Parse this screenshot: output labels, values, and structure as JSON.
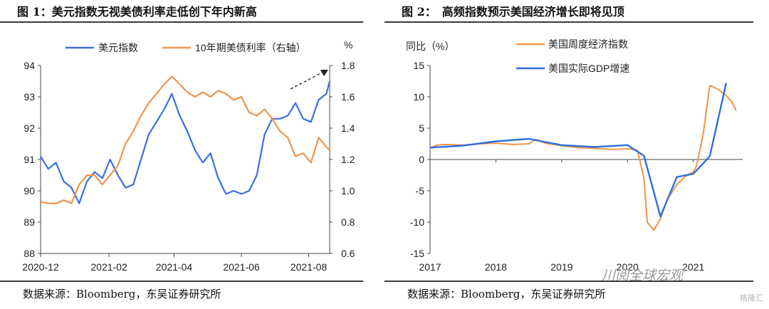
{
  "figure1": {
    "title": "图 1：美元指数无视美债利率走低创下年内新高",
    "source": "数据来源：Bloomberg，东吴证券研究所",
    "unit_right": "%",
    "chart_data": {
      "type": "line",
      "x_ticks": [
        "2020-12",
        "2021-02",
        "2021-04",
        "2021-06",
        "2021-08"
      ],
      "y_left_ticks": [
        88,
        89,
        90,
        91,
        92,
        93,
        94
      ],
      "y_right_ticks": [
        "0.6",
        "0.8",
        "1.0",
        "1.2",
        "1.4",
        "1.6",
        "1.8"
      ],
      "y_left_lim": [
        88,
        94
      ],
      "y_right_lim": [
        0.6,
        1.8
      ],
      "x_range": [
        "2020-12",
        "2021-08-20"
      ],
      "legend_position": "top",
      "annotation": "dashed arrow pointing to latest dollar index high",
      "series": [
        {
          "name": "美元指数",
          "axis": "left",
          "color": "#3b6fe0",
          "x": [
            "2020-12-01",
            "2020-12-08",
            "2020-12-15",
            "2020-12-22",
            "2020-12-29",
            "2021-01-05",
            "2021-01-12",
            "2021-01-19",
            "2021-01-26",
            "2021-02-02",
            "2021-02-09",
            "2021-02-16",
            "2021-02-23",
            "2021-03-02",
            "2021-03-09",
            "2021-03-16",
            "2021-03-23",
            "2021-03-30",
            "2021-04-06",
            "2021-04-13",
            "2021-04-20",
            "2021-04-27",
            "2021-05-04",
            "2021-05-11",
            "2021-05-18",
            "2021-05-25",
            "2021-06-01",
            "2021-06-08",
            "2021-06-15",
            "2021-06-22",
            "2021-06-29",
            "2021-07-06",
            "2021-07-13",
            "2021-07-20",
            "2021-07-27",
            "2021-08-03",
            "2021-08-10",
            "2021-08-17",
            "2021-08-20"
          ],
          "values": [
            91.1,
            90.7,
            90.9,
            90.3,
            90.1,
            89.6,
            90.3,
            90.6,
            90.4,
            91.0,
            90.5,
            90.1,
            90.2,
            91.0,
            91.8,
            92.2,
            92.6,
            93.1,
            92.4,
            91.9,
            91.3,
            90.9,
            91.2,
            90.4,
            89.9,
            90.0,
            89.9,
            90.0,
            90.5,
            91.8,
            92.3,
            92.3,
            92.4,
            92.8,
            92.3,
            92.2,
            92.9,
            93.1,
            93.5
          ]
        },
        {
          "name": "10年期美债利率（右轴）",
          "axis": "right",
          "color": "#f0954a",
          "x": [
            "2020-12-01",
            "2020-12-08",
            "2020-12-15",
            "2020-12-22",
            "2020-12-29",
            "2021-01-05",
            "2021-01-12",
            "2021-01-19",
            "2021-01-26",
            "2021-02-02",
            "2021-02-09",
            "2021-02-16",
            "2021-02-23",
            "2021-03-02",
            "2021-03-09",
            "2021-03-16",
            "2021-03-23",
            "2021-03-30",
            "2021-04-06",
            "2021-04-13",
            "2021-04-20",
            "2021-04-27",
            "2021-05-04",
            "2021-05-11",
            "2021-05-18",
            "2021-05-25",
            "2021-06-01",
            "2021-06-08",
            "2021-06-15",
            "2021-06-22",
            "2021-06-29",
            "2021-07-06",
            "2021-07-13",
            "2021-07-20",
            "2021-07-27",
            "2021-08-03",
            "2021-08-10",
            "2021-08-17",
            "2021-08-20"
          ],
          "values": [
            0.93,
            0.92,
            0.92,
            0.94,
            0.92,
            1.04,
            1.1,
            1.1,
            1.04,
            1.1,
            1.16,
            1.3,
            1.38,
            1.48,
            1.56,
            1.62,
            1.68,
            1.73,
            1.68,
            1.63,
            1.6,
            1.63,
            1.6,
            1.64,
            1.62,
            1.58,
            1.6,
            1.5,
            1.48,
            1.52,
            1.46,
            1.38,
            1.34,
            1.22,
            1.24,
            1.18,
            1.34,
            1.28,
            1.26
          ]
        }
      ]
    }
  },
  "figure2": {
    "title": "图 2：　高频指数预示美国经济增长即将见顶",
    "source": "数据来源：Bloomberg，东吴证券研究所",
    "unit_left": "同比（%）",
    "watermark": "川阅全球宏观",
    "watermark2": "格隆汇",
    "chart_data": {
      "type": "line",
      "x_ticks": [
        "2017",
        "2018",
        "2019",
        "2020",
        "2021"
      ],
      "y_ticks": [
        -15,
        -10,
        -5,
        0,
        5,
        10,
        15
      ],
      "ylim": [
        -15,
        15
      ],
      "x_range": [
        2017.0,
        2021.75
      ],
      "legend_position": "top-right",
      "series": [
        {
          "name": "美国周度经济指数",
          "color": "#f0954a",
          "x": [
            2017.0,
            2017.1,
            2017.25,
            2017.5,
            2017.75,
            2018.0,
            2018.25,
            2018.5,
            2018.6,
            2018.75,
            2019.0,
            2019.25,
            2019.5,
            2019.75,
            2020.0,
            2020.15,
            2020.25,
            2020.3,
            2020.4,
            2020.5,
            2020.6,
            2020.75,
            2020.9,
            2021.0,
            2021.05,
            2021.15,
            2021.25,
            2021.3,
            2021.4,
            2021.5,
            2021.6,
            2021.65
          ],
          "values": [
            1.8,
            2.3,
            2.4,
            2.3,
            2.5,
            2.6,
            2.4,
            2.5,
            3.2,
            2.6,
            2.2,
            1.9,
            1.8,
            1.6,
            1.7,
            1.5,
            -3.0,
            -10.0,
            -11.3,
            -9.5,
            -6.5,
            -4.0,
            -2.5,
            -2.0,
            -1.0,
            4.0,
            11.8,
            11.6,
            11.0,
            10.2,
            9.0,
            7.8
          ]
        },
        {
          "name": "美国实际GDP增速",
          "color": "#2e6fdc",
          "x": [
            2017.0,
            2017.5,
            2018.0,
            2018.5,
            2019.0,
            2019.5,
            2020.0,
            2020.25,
            2020.5,
            2020.75,
            2021.0,
            2021.25,
            2021.5
          ],
          "values": [
            1.9,
            2.2,
            2.9,
            3.3,
            2.3,
            2.0,
            2.3,
            0.6,
            -9.1,
            -2.8,
            -2.3,
            0.5,
            12.2
          ]
        }
      ]
    }
  }
}
